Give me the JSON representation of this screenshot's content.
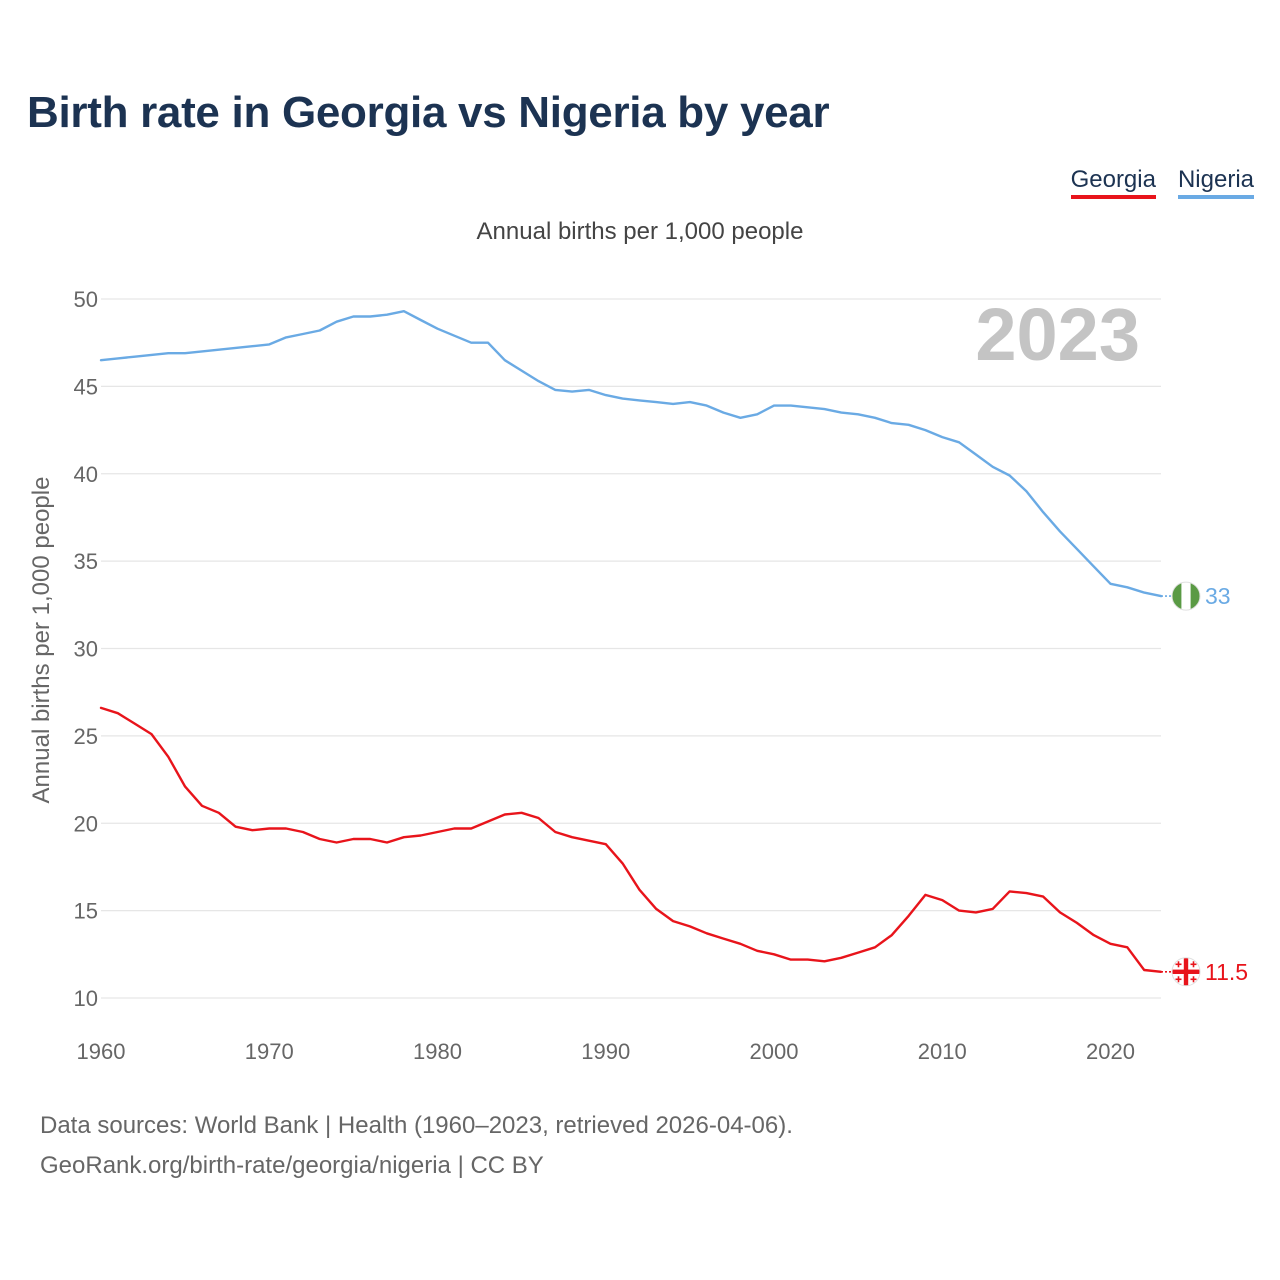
{
  "title": "Birth rate in Georgia vs Nigeria by year",
  "legend": [
    {
      "name": "Georgia",
      "color": "#e8141b"
    },
    {
      "name": "Nigeria",
      "color": "#6aaae4"
    }
  ],
  "subtitle": "Annual births per 1,000 people",
  "ylabel": "Annual births per 1,000 people",
  "year_label": "2023",
  "footer": {
    "line1": "Data sources: World Bank | Health (1960–2023, retrieved 2026-04-06).",
    "line2": "GeoRank.org/birth-rate/georgia/nigeria | CC BY"
  },
  "chart_data": {
    "type": "line",
    "title": "Birth rate in Georgia vs Nigeria by year",
    "xlabel": "",
    "ylabel": "Annual births per 1,000 people",
    "xlim": [
      1960,
      2023
    ],
    "ylim": [
      10,
      50
    ],
    "x_ticks": [
      1960,
      1970,
      1980,
      1990,
      2000,
      2010,
      2020
    ],
    "y_ticks": [
      10,
      15,
      20,
      25,
      30,
      35,
      40,
      45,
      50
    ],
    "x": [
      1960,
      1961,
      1962,
      1963,
      1964,
      1965,
      1966,
      1967,
      1968,
      1969,
      1970,
      1971,
      1972,
      1973,
      1974,
      1975,
      1976,
      1977,
      1978,
      1979,
      1980,
      1981,
      1982,
      1983,
      1984,
      1985,
      1986,
      1987,
      1988,
      1989,
      1990,
      1991,
      1992,
      1993,
      1994,
      1995,
      1996,
      1997,
      1998,
      1999,
      2000,
      2001,
      2002,
      2003,
      2004,
      2005,
      2006,
      2007,
      2008,
      2009,
      2010,
      2011,
      2012,
      2013,
      2014,
      2015,
      2016,
      2017,
      2018,
      2019,
      2020,
      2021,
      2022,
      2023
    ],
    "series": [
      {
        "name": "Georgia",
        "color": "#e8141b",
        "end_label": "11.5",
        "values": [
          26.6,
          26.3,
          25.7,
          25.1,
          23.8,
          22.1,
          21.0,
          20.6,
          19.8,
          19.6,
          19.7,
          19.7,
          19.5,
          19.1,
          18.9,
          19.1,
          19.1,
          18.9,
          19.2,
          19.3,
          19.5,
          19.7,
          19.7,
          20.1,
          20.5,
          20.6,
          20.3,
          19.5,
          19.2,
          19.0,
          18.8,
          17.7,
          16.2,
          15.1,
          14.4,
          14.1,
          13.7,
          13.4,
          13.1,
          12.7,
          12.5,
          12.2,
          12.2,
          12.1,
          12.3,
          12.6,
          12.9,
          13.6,
          14.7,
          15.9,
          15.6,
          15.0,
          14.9,
          15.1,
          16.1,
          16.0,
          15.8,
          14.9,
          14.3,
          13.6,
          13.1,
          12.9,
          11.6,
          11.5
        ]
      },
      {
        "name": "Nigeria",
        "color": "#6aaae4",
        "end_label": "33",
        "values": [
          46.5,
          46.6,
          46.7,
          46.8,
          46.9,
          46.9,
          47.0,
          47.1,
          47.2,
          47.3,
          47.4,
          47.8,
          48.0,
          48.2,
          48.7,
          49.0,
          49.0,
          49.1,
          49.3,
          48.8,
          48.3,
          47.9,
          47.5,
          47.5,
          46.5,
          45.9,
          45.3,
          44.8,
          44.7,
          44.8,
          44.5,
          44.3,
          44.2,
          44.1,
          44.0,
          44.1,
          43.9,
          43.5,
          43.2,
          43.4,
          43.9,
          43.9,
          43.8,
          43.7,
          43.5,
          43.4,
          43.2,
          42.9,
          42.8,
          42.5,
          42.1,
          41.8,
          41.1,
          40.4,
          39.9,
          39.0,
          37.8,
          36.7,
          35.7,
          34.7,
          33.7,
          33.5,
          33.2,
          33.0
        ]
      }
    ]
  }
}
